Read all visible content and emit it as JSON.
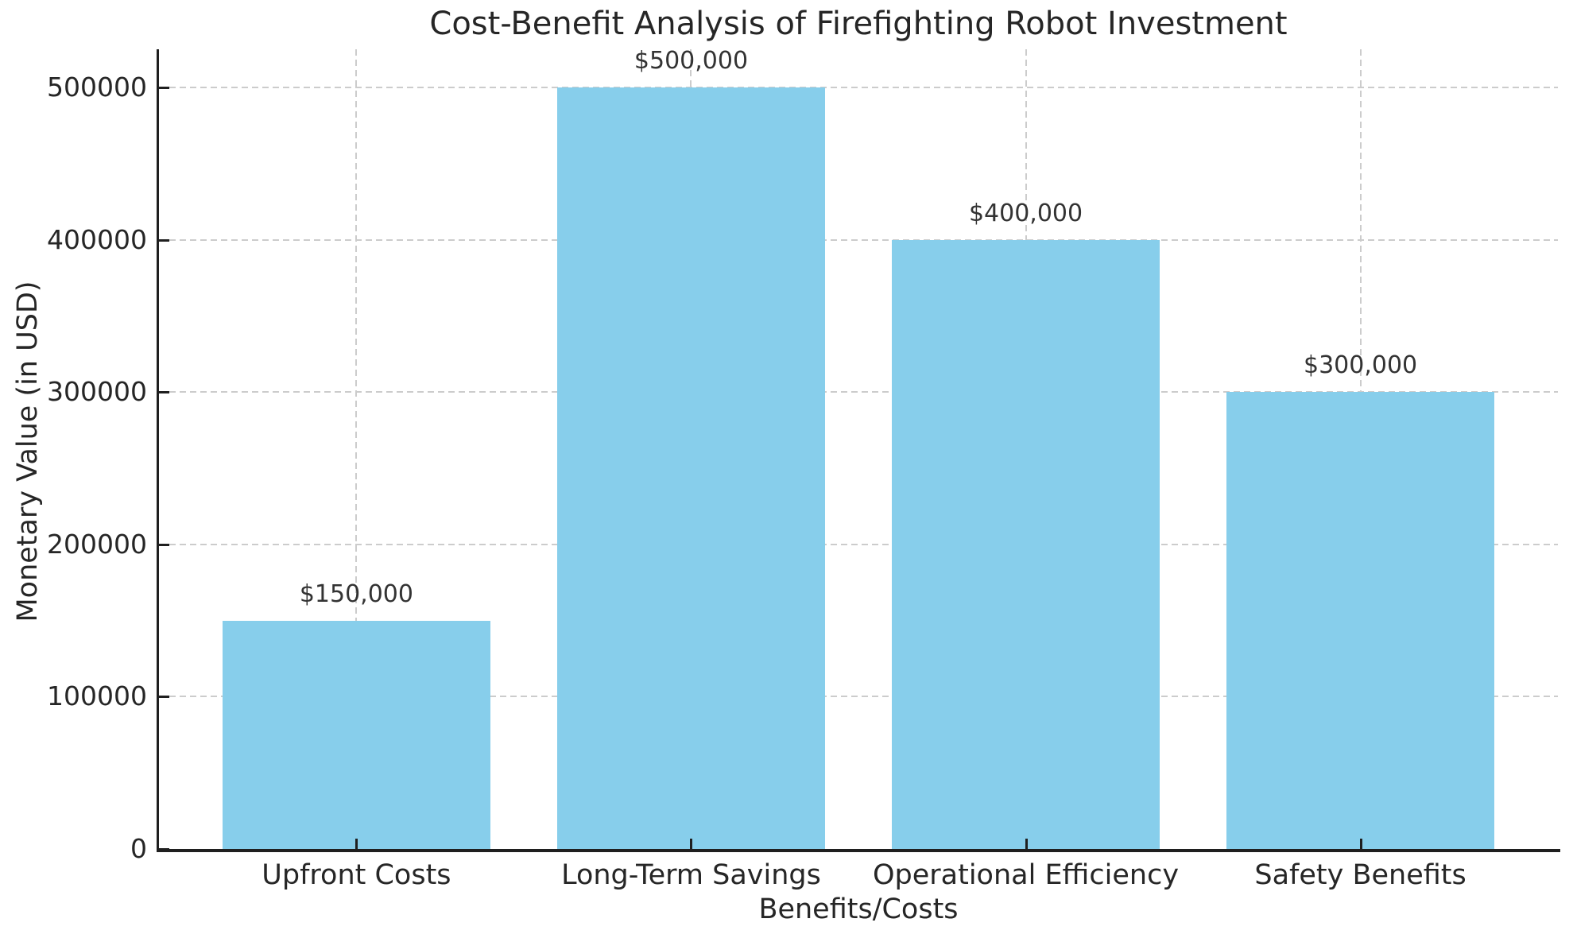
{
  "chart_data": {
    "type": "bar",
    "title": "Cost-Benefit Analysis of Firefighting Robot Investment",
    "xlabel": "Benefits/Costs",
    "ylabel": "Monetary Value (in USD)",
    "categories": [
      "Upfront Costs",
      "Long-Term Savings",
      "Operational Efficiency",
      "Safety Benefits"
    ],
    "values": [
      150000,
      500000,
      400000,
      300000
    ],
    "value_labels": [
      "$150,000",
      "$500,000",
      "$400,000",
      "$300,000"
    ],
    "yticks": [
      0,
      100000,
      200000,
      300000,
      400000,
      500000
    ],
    "ytick_labels": [
      "0",
      "100000",
      "200000",
      "300000",
      "400000",
      "500000"
    ],
    "ylim": [
      0,
      525000
    ],
    "grid": "dashed-both-axes",
    "legend": "none",
    "colors": {
      "bar": "#87CEEB",
      "gridline": "#cccccc",
      "axis": "#1f1f1f",
      "text": "#262626",
      "value_label_text": "#333333",
      "background": "#ffffff"
    }
  }
}
